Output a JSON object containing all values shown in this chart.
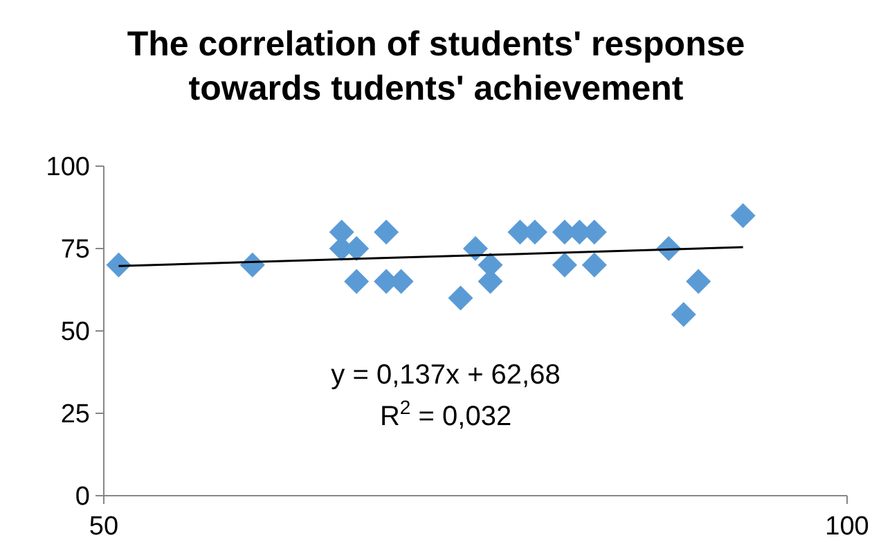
{
  "chart_data": {
    "type": "scatter",
    "title": "The correlation of students' response towards tudents' achievement",
    "series": [
      {
        "color": "#5b9bd5",
        "marker": "diamond",
        "x": [
          51,
          60,
          66,
          66,
          67,
          67,
          69,
          69,
          70,
          74,
          75,
          76,
          76,
          78,
          79,
          81,
          81,
          82,
          83,
          83,
          88,
          89,
          90,
          93
        ],
        "values": [
          70,
          70,
          80,
          75,
          75,
          65,
          80,
          65,
          65,
          60,
          75,
          70,
          65,
          80,
          80,
          80,
          70,
          80,
          80,
          70,
          75,
          55,
          65,
          85
        ]
      },
      {
        "type": "line",
        "color": "#000000",
        "x": [
          51,
          93
        ],
        "values": [
          69.7,
          75.4
        ]
      }
    ],
    "annotations": [
      "y = 0,137x + 62,68",
      "R$^{2}$ = 0,032"
    ],
    "xlim": [
      50,
      100
    ],
    "xticks": [
      50,
      100
    ],
    "ylim": [
      0,
      100
    ],
    "yticks": [
      0,
      25,
      50,
      75,
      100
    ],
    "grid": false
  }
}
